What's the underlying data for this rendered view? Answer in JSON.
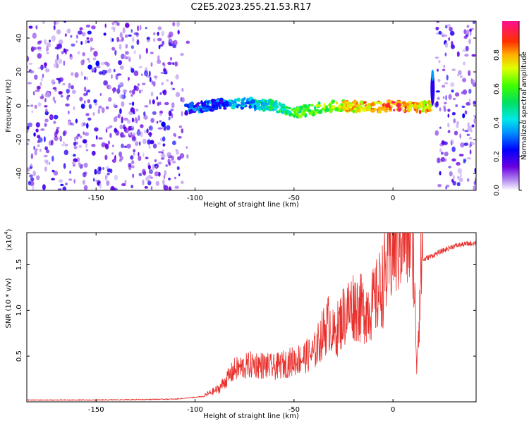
{
  "title": "C2E5.2023.255.21.53.R17",
  "colors": {
    "line": "#e8302c",
    "background_noise": "#8a2be2",
    "frame": "#000000"
  },
  "chart_data": [
    {
      "type": "heatmap",
      "xlabel": "Height of straight line (km)",
      "ylabel": "Frequency (Hz)",
      "xlim": [
        -185,
        42
      ],
      "ylim": [
        -50,
        50
      ],
      "xticks": [
        -150,
        -100,
        -50,
        0
      ],
      "yticks": [
        -40,
        -20,
        0,
        20,
        40
      ],
      "colorbar": {
        "label": "Normalized spectral amplitude",
        "range": [
          0,
          1
        ],
        "ticks": [
          0.0,
          0.2,
          0.4,
          0.6,
          0.8
        ],
        "colormap": "rainbow"
      },
      "features": {
        "noise_regions_km": [
          [
            -185,
            -100
          ],
          [
            22,
            42
          ]
        ],
        "main_trace": {
          "x": [
            -105,
            -80,
            -60,
            -50,
            -30,
            -10,
            0,
            15,
            20
          ],
          "y": [
            -2,
            2,
            0,
            -4,
            0,
            -1,
            0,
            -1,
            0
          ],
          "peak_amplitude_near_km": 0
        },
        "vertical_feature_km": 20
      }
    },
    {
      "type": "line",
      "xlabel": "Height of straight line (km)",
      "ylabel": "SNR (10 * v/v)",
      "scale_label": "(x10",
      "scale_exponent": "4",
      "scale_suffix": ")",
      "xlim": [
        -185,
        42
      ],
      "ylim": [
        0,
        1.85
      ],
      "xticks": [
        -150,
        -100,
        -50,
        0
      ],
      "yticks": [
        0.5,
        1.0,
        1.5
      ],
      "yticklabels": [
        "0.5",
        "1.0",
        "1.5"
      ],
      "series": [
        {
          "x": [
            -185,
            -150,
            -110,
            -95,
            -88,
            -80,
            -70,
            -60,
            -50,
            -40,
            -35,
            -32,
            -30,
            -25,
            -20,
            -15,
            -10,
            -5,
            0,
            5,
            10,
            12,
            15,
            20,
            25,
            30,
            35,
            42
          ],
          "y": [
            0.02,
            0.02,
            0.03,
            0.06,
            0.12,
            0.3,
            0.35,
            0.32,
            0.38,
            0.45,
            0.65,
            0.75,
            0.6,
            0.8,
            0.9,
            0.85,
            0.9,
            1.1,
            1.45,
            1.6,
            1.55,
            0.35,
            1.55,
            1.6,
            1.65,
            1.7,
            1.72,
            1.74
          ]
        }
      ]
    }
  ]
}
